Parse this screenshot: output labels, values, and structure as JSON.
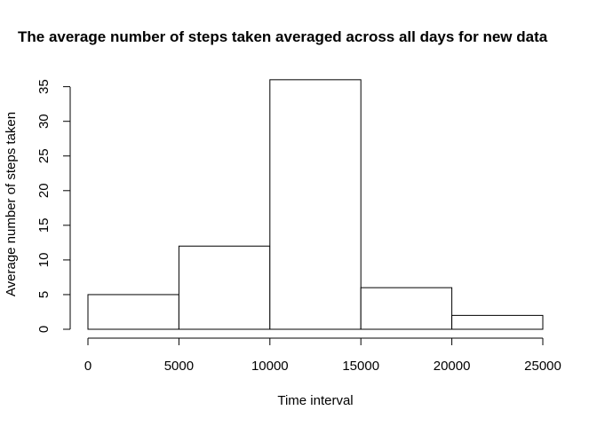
{
  "chart_data": {
    "type": "histogram",
    "title": "The average number of steps taken averaged across all days for new data",
    "xlabel": "Time interval",
    "ylabel": "Average number of steps taken",
    "bins": [
      {
        "from": 0,
        "to": 5000,
        "count": 5
      },
      {
        "from": 5000,
        "to": 10000,
        "count": 12
      },
      {
        "from": 10000,
        "to": 15000,
        "count": 36
      },
      {
        "from": 15000,
        "to": 20000,
        "count": 6
      },
      {
        "from": 20000,
        "to": 25000,
        "count": 2
      }
    ],
    "xlim": [
      0,
      25000
    ],
    "ylim": [
      0,
      36
    ],
    "xticks": [
      0,
      5000,
      10000,
      15000,
      20000,
      25000
    ],
    "yticks": [
      0,
      5,
      10,
      15,
      20,
      25,
      30,
      35
    ],
    "bar_fill": "#ffffff",
    "bar_stroke": "#000000",
    "grid": false,
    "legend": "none"
  }
}
